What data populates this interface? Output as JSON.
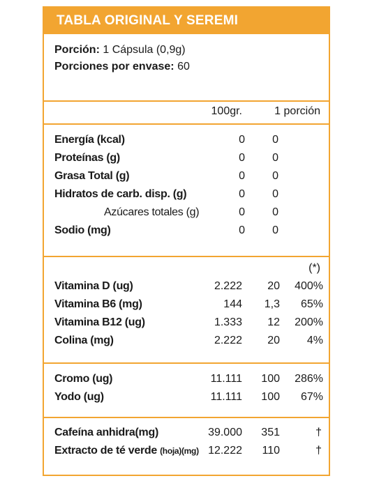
{
  "title": "TABLA ORIGINAL Y SEREMI",
  "serving": {
    "portion_label": "Porción:",
    "portion_value": "1 Cápsula (0,9g)",
    "per_container_label": "Porciones por envase:",
    "per_container_value": "60"
  },
  "columns": {
    "per100": "100gr.",
    "per_portion": "1 porción",
    "pct": "(*)"
  },
  "macros": [
    {
      "name": "Energía (kcal)",
      "per100": "0",
      "per_portion": "0"
    },
    {
      "name": "Proteínas (g)",
      "per100": "0",
      "per_portion": "0"
    },
    {
      "name": "Grasa Total (g)",
      "per100": "0",
      "per_portion": "0"
    },
    {
      "name": "Hidratos de carb. disp. (g)",
      "per100": "0",
      "per_portion": "0"
    },
    {
      "name": "Azúcares totales (g)",
      "per100": "0",
      "per_portion": "0"
    },
    {
      "name": "Sodio (mg)",
      "per100": "0",
      "per_portion": "0"
    }
  ],
  "vitamins": [
    {
      "name": "Vitamina D (ug)",
      "per100": "2.222",
      "per_portion": "20",
      "pct": "400%"
    },
    {
      "name": "Vitamina B6 (mg)",
      "per100": "144",
      "per_portion": "1,3",
      "pct": "65%"
    },
    {
      "name": "Vitamina B12 (ug)",
      "per100": "1.333",
      "per_portion": "12",
      "pct": "200%"
    },
    {
      "name": "Colina (mg)",
      "per100": "2.222",
      "per_portion": "20",
      "pct": "4%"
    }
  ],
  "minerals": [
    {
      "name": "Cromo (ug)",
      "per100": "11.111",
      "per_portion": "100",
      "pct": "286%"
    },
    {
      "name": "Yodo (ug)",
      "per100": "11.111",
      "per_portion": "100",
      "pct": "67%"
    }
  ],
  "others": [
    {
      "name": "Cafeína anhidra(mg)",
      "name_suffix": "",
      "per100": "39.000",
      "per_portion": "351",
      "pct": "†"
    },
    {
      "name": "Extracto de té verde ",
      "name_suffix": "(hoja)(mg)",
      "per100": "12.222",
      "per_portion": "110",
      "pct": "†"
    }
  ],
  "colors": {
    "accent": "#f2a531",
    "text": "#1a1a1a",
    "background": "#ffffff"
  }
}
